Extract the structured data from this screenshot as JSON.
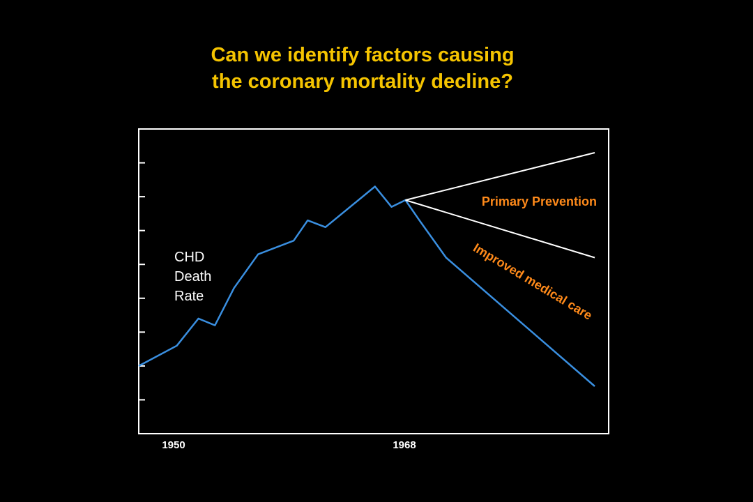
{
  "slide": {
    "title_line1": "Can we identify factors causing",
    "title_line2": "the coronary mortality decline?"
  },
  "colors": {
    "title": "#f5c400",
    "series_line": "#3a8fe0",
    "projection_line": "#ffffff",
    "annotation": "#ff8a1a",
    "background": "#000000"
  },
  "chart_data": {
    "type": "line",
    "title": "",
    "ylabel_lines": [
      "CHD",
      "Death",
      "Rate"
    ],
    "xlabel": "",
    "x_tick_labels": [
      "1950",
      "1968"
    ],
    "x_ticks": [
      1950,
      1968
    ],
    "xlim": [
      1947,
      1984
    ],
    "ylim": [
      0,
      9
    ],
    "y_tick_values": [
      1,
      2,
      3,
      4,
      5,
      6,
      7,
      8
    ],
    "y_tick_labels_shown": false,
    "grid": false,
    "series": [
      {
        "role": "observed",
        "x": [
          1947,
          1950,
          1951.7,
          1953,
          1954.5,
          1956.4,
          1959.2,
          1960.3,
          1961.7,
          1965.6,
          1966.9,
          1968,
          1969.1,
          1971.2,
          1982.9
        ],
        "y": [
          2.0,
          2.6,
          3.4,
          3.2,
          4.3,
          5.3,
          5.7,
          6.3,
          6.1,
          7.3,
          6.7,
          6.9,
          6.3,
          5.2,
          1.4
        ]
      },
      {
        "role": "projection-upper",
        "x": [
          1968,
          1982.9
        ],
        "y": [
          6.9,
          8.3
        ]
      },
      {
        "role": "projection-lower",
        "x": [
          1968,
          1982.9
        ],
        "y": [
          6.9,
          5.2
        ]
      }
    ],
    "annotations": [
      {
        "text": "Primary Prevention",
        "x": 1982.9,
        "y": 6.6,
        "rotation": 0
      },
      {
        "text": "Improved medical care",
        "x": 1978,
        "y": 4.7,
        "rotation": 31
      }
    ]
  }
}
